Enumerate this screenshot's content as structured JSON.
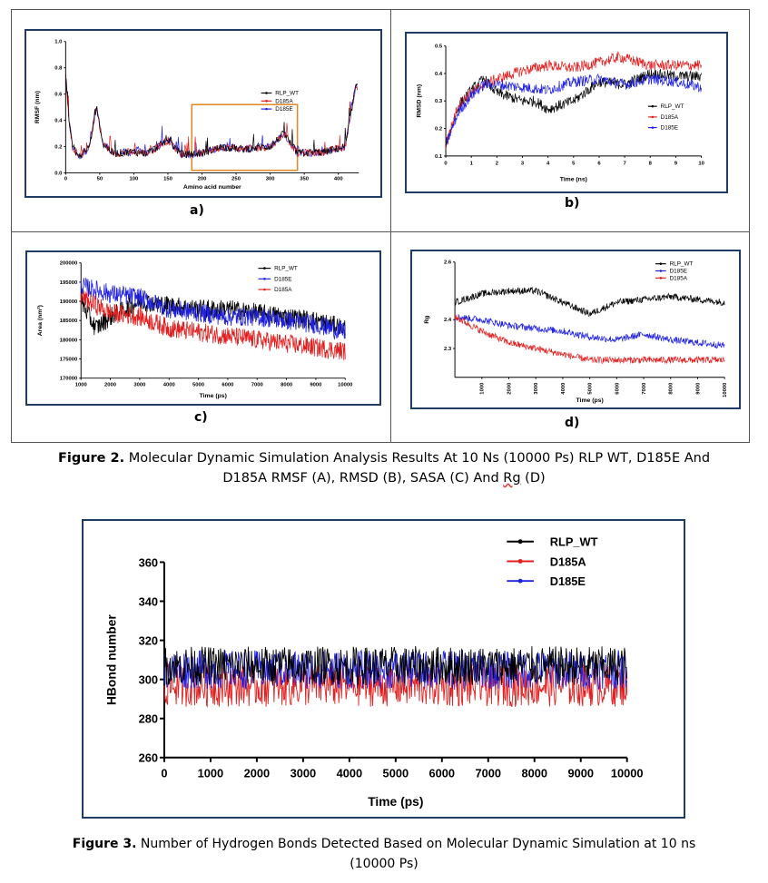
{
  "figure2": {
    "panels": [
      {
        "id": "a",
        "label": "a)"
      },
      {
        "id": "b",
        "label": "b)"
      },
      {
        "id": "c",
        "label": "c)"
      },
      {
        "id": "d",
        "label": "d)"
      }
    ],
    "caption_bold": "Figure 2.",
    "caption_line1": " Molecular Dynamic Simulation Analysis Results At 10 Ns (10000 Ps) RLP WT, D185E And",
    "caption_line2a": "D185A RMSF (A), RMSD (B), SASA (C) And ",
    "caption_line2b": "Rg",
    "caption_line2c": " (D)"
  },
  "figure3": {
    "caption_bold": "Figure 3.",
    "caption_line1": " Number of Hydrogen Bonds Detected Based on Molecular Dynamic Simulation at 10 ns",
    "caption_line2": "(10000 Ps)"
  },
  "colors": {
    "RLP_WT": "#000000",
    "D185A": "#e02020",
    "D185E": "#2020e0",
    "frame": "#1f3b66",
    "highlight": "#e08a2a"
  },
  "chart_data": [
    {
      "id": "rmsf",
      "type": "line",
      "xlabel": "Amino acid number",
      "ylabel": "RMSF (nm)",
      "xlim": [
        0,
        430
      ],
      "ylim": [
        0,
        1.0
      ],
      "xticks": [
        "0",
        "50",
        "100",
        "150",
        "200",
        "250",
        "300",
        "350",
        "400"
      ],
      "yticks": [
        "0.0",
        "0.2",
        "0.4",
        "0.6",
        "0.8",
        "1.0"
      ],
      "series": [
        {
          "name": "RLP_WT"
        },
        {
          "name": "D185A"
        },
        {
          "name": "D185E"
        }
      ],
      "legend": "right",
      "highlight_range": [
        185,
        340
      ],
      "profile": [
        [
          0,
          0.75
        ],
        [
          5,
          0.4
        ],
        [
          10,
          0.2
        ],
        [
          20,
          0.12
        ],
        [
          35,
          0.2
        ],
        [
          45,
          0.5
        ],
        [
          55,
          0.22
        ],
        [
          70,
          0.15
        ],
        [
          100,
          0.16
        ],
        [
          120,
          0.15
        ],
        [
          150,
          0.25
        ],
        [
          170,
          0.14
        ],
        [
          200,
          0.15
        ],
        [
          230,
          0.2
        ],
        [
          260,
          0.18
        ],
        [
          300,
          0.2
        ],
        [
          320,
          0.3
        ],
        [
          340,
          0.15
        ],
        [
          380,
          0.16
        ],
        [
          410,
          0.2
        ],
        [
          425,
          0.65
        ]
      ]
    },
    {
      "id": "rmsd",
      "type": "line",
      "xlabel": "Time (ns)",
      "ylabel": "RMSD (nm)",
      "xlim": [
        0,
        10
      ],
      "ylim": [
        0.1,
        0.5
      ],
      "xticks": [
        "0",
        "1",
        "2",
        "3",
        "4",
        "5",
        "6",
        "7",
        "8",
        "9",
        "10"
      ],
      "yticks": [
        "0.1",
        "0.2",
        "0.3",
        "0.4",
        "0.5"
      ],
      "series": [
        {
          "name": "RLP_WT",
          "profile": [
            [
              0,
              0.14
            ],
            [
              0.5,
              0.28
            ],
            [
              1,
              0.34
            ],
            [
              1.5,
              0.38
            ],
            [
              2,
              0.33
            ],
            [
              3,
              0.3
            ],
            [
              3.5,
              0.3
            ],
            [
              4,
              0.27
            ],
            [
              5,
              0.3
            ],
            [
              6,
              0.37
            ],
            [
              7,
              0.36
            ],
            [
              8,
              0.4
            ],
            [
              9,
              0.39
            ],
            [
              10,
              0.39
            ]
          ]
        },
        {
          "name": "D185A",
          "profile": [
            [
              0,
              0.14
            ],
            [
              0.5,
              0.29
            ],
            [
              1,
              0.33
            ],
            [
              1.5,
              0.36
            ],
            [
              2,
              0.38
            ],
            [
              3,
              0.41
            ],
            [
              4,
              0.43
            ],
            [
              5,
              0.42
            ],
            [
              6,
              0.44
            ],
            [
              6.8,
              0.46
            ],
            [
              8,
              0.43
            ],
            [
              9,
              0.43
            ],
            [
              10,
              0.43
            ]
          ]
        },
        {
          "name": "D185E",
          "profile": [
            [
              0,
              0.14
            ],
            [
              0.5,
              0.26
            ],
            [
              1,
              0.32
            ],
            [
              1.5,
              0.36
            ],
            [
              2,
              0.36
            ],
            [
              3,
              0.35
            ],
            [
              4,
              0.34
            ],
            [
              5,
              0.37
            ],
            [
              6,
              0.38
            ],
            [
              7,
              0.36
            ],
            [
              8,
              0.38
            ],
            [
              9,
              0.37
            ],
            [
              10,
              0.35
            ]
          ]
        }
      ],
      "legend": "right"
    },
    {
      "id": "sasa",
      "type": "line",
      "xlabel": "Time (ps)",
      "ylabel": "Area (nm²)",
      "xlim": [
        1000,
        10000
      ],
      "ylim": [
        170000,
        200000
      ],
      "xticks": [
        "1000",
        "2000",
        "3000",
        "4000",
        "5000",
        "6000",
        "7000",
        "8000",
        "9000",
        "10000"
      ],
      "yticks": [
        "170000",
        "175000",
        "180000",
        "185000",
        "190000",
        "195000",
        "200000"
      ],
      "series": [
        {
          "name": "RLP_WT",
          "profile": [
            [
              1000,
              190000
            ],
            [
              1500,
              183000
            ],
            [
              2000,
              186000
            ],
            [
              3000,
              190000
            ],
            [
              4000,
              189000
            ],
            [
              5000,
              188000
            ],
            [
              6000,
              188000
            ],
            [
              7000,
              187000
            ],
            [
              8000,
              186000
            ],
            [
              9000,
              185000
            ],
            [
              10000,
              183000
            ]
          ]
        },
        {
          "name": "D185E",
          "profile": [
            [
              1000,
              194000
            ],
            [
              1500,
              193000
            ],
            [
              2000,
              192000
            ],
            [
              3000,
              191000
            ],
            [
              4000,
              188000
            ],
            [
              5000,
              187000
            ],
            [
              6000,
              186000
            ],
            [
              7000,
              186000
            ],
            [
              8000,
              185000
            ],
            [
              9000,
              184000
            ],
            [
              10000,
              182000
            ]
          ]
        },
        {
          "name": "D185A",
          "profile": [
            [
              1000,
              191000
            ],
            [
              1500,
              189000
            ],
            [
              2000,
              187000
            ],
            [
              3000,
              186000
            ],
            [
              4000,
              183000
            ],
            [
              5000,
              182000
            ],
            [
              6000,
              181000
            ],
            [
              7000,
              180000
            ],
            [
              8000,
              179000
            ],
            [
              9000,
              178000
            ],
            [
              10000,
              177000
            ]
          ]
        }
      ],
      "legend": "top-right"
    },
    {
      "id": "rg",
      "type": "line",
      "xlabel": "Time (ps)",
      "ylabel": "Rg",
      "xlim": [
        0,
        10000
      ],
      "ylim": [
        2.2,
        2.6
      ],
      "xticks": [
        "1000",
        "2000",
        "3000",
        "4000",
        "5000",
        "6000",
        "7000",
        "8000",
        "9000",
        "10000"
      ],
      "yticks": [
        "2.6",
        "2.4",
        "2.3"
      ],
      "series": [
        {
          "name": "RLP_WT",
          "profile": [
            [
              0,
              2.46
            ],
            [
              1000,
              2.49
            ],
            [
              2000,
              2.5
            ],
            [
              3000,
              2.5
            ],
            [
              4000,
              2.46
            ],
            [
              5000,
              2.42
            ],
            [
              6000,
              2.46
            ],
            [
              7000,
              2.47
            ],
            [
              8000,
              2.48
            ],
            [
              9000,
              2.47
            ],
            [
              10000,
              2.46
            ]
          ]
        },
        {
          "name": "D185E",
          "profile": [
            [
              0,
              2.41
            ],
            [
              1000,
              2.4
            ],
            [
              2000,
              2.38
            ],
            [
              3000,
              2.37
            ],
            [
              4000,
              2.36
            ],
            [
              5000,
              2.34
            ],
            [
              6000,
              2.33
            ],
            [
              7000,
              2.35
            ],
            [
              8000,
              2.33
            ],
            [
              9000,
              2.32
            ],
            [
              10000,
              2.31
            ]
          ]
        },
        {
          "name": "D185A",
          "profile": [
            [
              0,
              2.41
            ],
            [
              1000,
              2.36
            ],
            [
              2000,
              2.32
            ],
            [
              3000,
              2.3
            ],
            [
              4000,
              2.28
            ],
            [
              5000,
              2.26
            ],
            [
              6000,
              2.26
            ],
            [
              7000,
              2.26
            ],
            [
              8000,
              2.26
            ],
            [
              9000,
              2.26
            ],
            [
              10000,
              2.26
            ]
          ]
        }
      ],
      "legend": "top-right"
    },
    {
      "id": "hbond",
      "type": "line",
      "xlabel": "Time (ps)",
      "ylabel": "HBond number",
      "xlim": [
        0,
        10000
      ],
      "ylim": [
        260,
        360
      ],
      "xticks": [
        "0",
        "1000",
        "2000",
        "3000",
        "4000",
        "5000",
        "6000",
        "7000",
        "8000",
        "9000",
        "10000"
      ],
      "yticks": [
        "260",
        "280",
        "300",
        "320",
        "340",
        "360"
      ],
      "series": [
        {
          "name": "RLP_WT",
          "mean": 307,
          "spread": 10
        },
        {
          "name": "D185A",
          "mean": 297,
          "spread": 11
        },
        {
          "name": "D185E",
          "mean": 305,
          "spread": 10
        }
      ],
      "legend": "top-right"
    }
  ]
}
